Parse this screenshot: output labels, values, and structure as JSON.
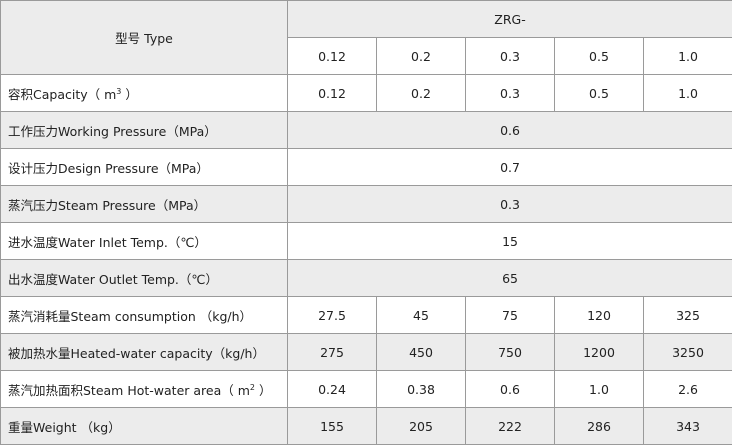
{
  "header": {
    "type_label": "型号 Type",
    "model_prefix": "ZRG-",
    "models": [
      "0.12",
      "0.2",
      "0.3",
      "0.5",
      "1.0"
    ]
  },
  "rows": [
    {
      "label_pre": "容积Capacity（ m",
      "label_sup": "3",
      "label_post": " ）",
      "values": [
        "0.12",
        "0.2",
        "0.3",
        "0.5",
        "1.0"
      ],
      "shaded": false
    },
    {
      "label": "工作压力Working Pressure（MPa）",
      "merged_value": "0.6",
      "shaded": true
    },
    {
      "label": "设计压力Design Pressure（MPa）",
      "merged_value": "0.7",
      "shaded": false
    },
    {
      "label": "蒸汽压力Steam Pressure（MPa）",
      "merged_value": "0.3",
      "shaded": true
    },
    {
      "label": "进水温度Water Inlet Temp.（℃）",
      "merged_value": "15",
      "shaded": false
    },
    {
      "label": "出水温度Water Outlet Temp.（℃）",
      "merged_value": "65",
      "shaded": true
    },
    {
      "label": "蒸汽消耗量Steam consumption （kg/h）",
      "values": [
        "27.5",
        "45",
        "75",
        "120",
        "325"
      ],
      "shaded": false
    },
    {
      "label": "被加热水量Heated-water capacity（kg/h）",
      "values": [
        "275",
        "450",
        "750",
        "1200",
        "3250"
      ],
      "shaded": true
    },
    {
      "label_pre": "蒸汽加热面积Steam Hot-water area（ m",
      "label_sup": "2",
      "label_post": " ）",
      "values": [
        "0.24",
        "0.38",
        "0.6",
        "1.0",
        "2.6"
      ],
      "shaded": false
    },
    {
      "label": "重量Weight （kg）",
      "values": [
        "155",
        "205",
        "222",
        "286",
        "343"
      ],
      "shaded": true
    }
  ]
}
